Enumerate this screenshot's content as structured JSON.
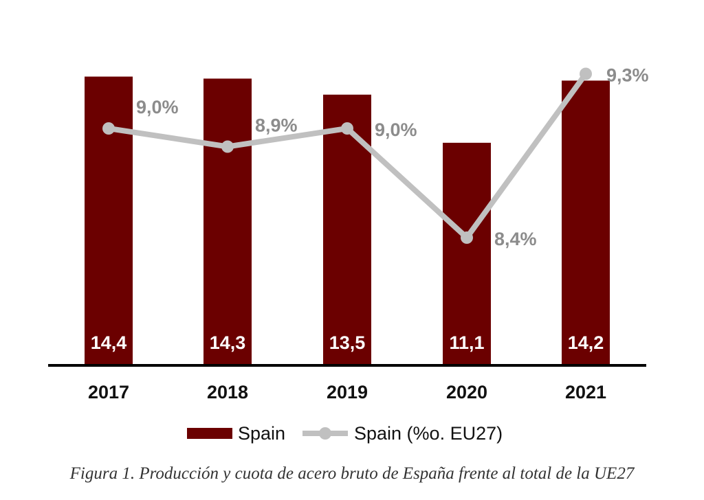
{
  "chart_data": {
    "type": "bar",
    "categories": [
      "2017",
      "2018",
      "2019",
      "2020",
      "2021"
    ],
    "series": [
      {
        "name": "Spain",
        "kind": "bar",
        "values": [
          14.4,
          14.3,
          13.5,
          11.1,
          14.2
        ],
        "labels": [
          "14,4",
          "14,3",
          "13,5",
          "11,1",
          "14,2"
        ],
        "color": "#6b0000"
      },
      {
        "name": "Spain (%o. EU27)",
        "kind": "line",
        "values": [
          9.0,
          8.9,
          9.0,
          8.4,
          9.3
        ],
        "labels": [
          "9,0%",
          "8,9%",
          "9,0%",
          "8,4%",
          "9,3%"
        ],
        "color": "#c0c0c0",
        "label_color": "#8c8c8c"
      }
    ],
    "legend_position": "bottom",
    "grid": false
  },
  "caption": "Figura 1. Producción y cuota de acero bruto de España frente al total de la UE27"
}
